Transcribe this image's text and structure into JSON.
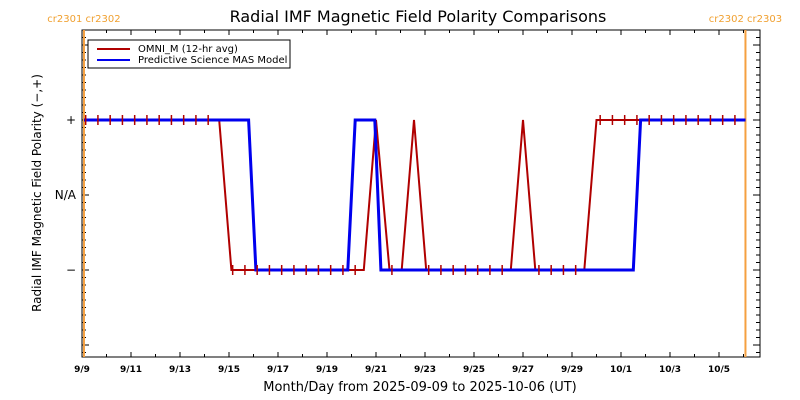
{
  "chart_data": {
    "type": "line",
    "title": "Radial IMF Magnetic Field Polarity Comparisons",
    "xlabel": "Month/Day from 2025-09-09 to 2025-10-06 (UT)",
    "ylabel": "Radial IMF Magnetic Field Polarity (−,+)",
    "x_units": "days since 2025-09-09 00:00 UT",
    "xlim": [
      0,
      27.7
    ],
    "ylim": [
      -2,
      2
    ],
    "x_ticks": [
      {
        "day": 0,
        "label": "9/9"
      },
      {
        "day": 2,
        "label": "9/11"
      },
      {
        "day": 4,
        "label": "9/13"
      },
      {
        "day": 6,
        "label": "9/15"
      },
      {
        "day": 8,
        "label": "9/17"
      },
      {
        "day": 10,
        "label": "9/19"
      },
      {
        "day": 12,
        "label": "9/21"
      },
      {
        "day": 14,
        "label": "9/23"
      },
      {
        "day": 16,
        "label": "9/25"
      },
      {
        "day": 18,
        "label": "9/27"
      },
      {
        "day": 20,
        "label": "9/29"
      },
      {
        "day": 22,
        "label": "10/1"
      },
      {
        "day": 24,
        "label": "10/3"
      },
      {
        "day": 26,
        "label": "10/5"
      }
    ],
    "y_ticks": [
      {
        "value": 1,
        "label": "+"
      },
      {
        "value": 0,
        "label": "N/A"
      },
      {
        "value": -1,
        "label": "−"
      }
    ],
    "carrington_markers": [
      {
        "day": 0.08,
        "label_left": "cr2301",
        "label_right": "cr2302"
      },
      {
        "day": 27.08,
        "label_left": "cr2302",
        "label_right": "cr2303"
      }
    ],
    "legend": {
      "placement": "top-left",
      "entries": [
        {
          "name": "OMNI_M (12-hr avg)",
          "color": "#b00000"
        },
        {
          "name": "Predictive Science MAS Model",
          "color": "#0000ee"
        }
      ]
    },
    "series": [
      {
        "name": "OMNI_M (12-hr avg)",
        "color": "#b00000",
        "markers": "plus-every-12hr",
        "marker_start_day": 0.15,
        "marker_end_day": 27.0,
        "points": [
          [
            0.08,
            1
          ],
          [
            5.6,
            1
          ],
          [
            6.1,
            -1
          ],
          [
            11.5,
            -1
          ],
          [
            12.0,
            1
          ],
          [
            12.55,
            -1
          ],
          [
            13.05,
            -1
          ],
          [
            13.55,
            1
          ],
          [
            14.05,
            -1
          ],
          [
            17.5,
            -1
          ],
          [
            18.0,
            1
          ],
          [
            18.5,
            -1
          ],
          [
            20.5,
            -1
          ],
          [
            21.0,
            1
          ],
          [
            27.08,
            1
          ]
        ]
      },
      {
        "name": "Predictive Science MAS Model",
        "color": "#0000ee",
        "points": [
          [
            0.08,
            1
          ],
          [
            6.8,
            1
          ],
          [
            7.1,
            -1
          ],
          [
            10.85,
            -1
          ],
          [
            11.15,
            1
          ],
          [
            11.95,
            1
          ],
          [
            12.2,
            -1
          ],
          [
            22.5,
            -1
          ],
          [
            22.8,
            1
          ],
          [
            27.08,
            1
          ]
        ]
      }
    ]
  }
}
